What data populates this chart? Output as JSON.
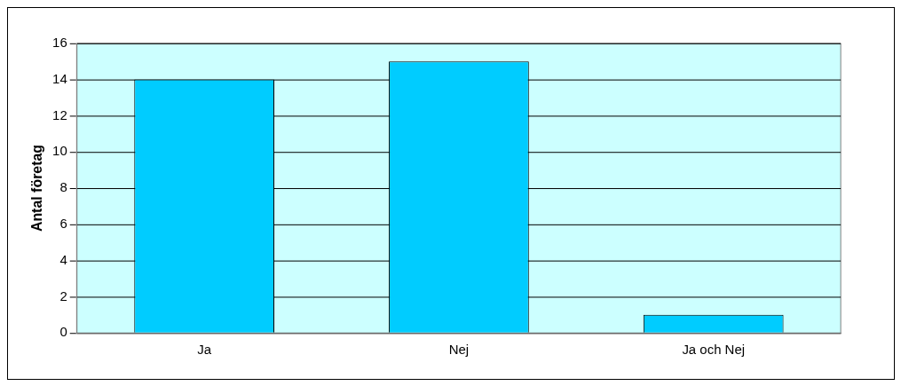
{
  "chart_data": {
    "type": "bar",
    "ylabel": "Antal företag",
    "categories": [
      "Ja",
      "Nej",
      "Ja och Nej"
    ],
    "values": [
      14,
      15,
      1
    ],
    "color": "#00ccff",
    "ylim": [
      0,
      16
    ],
    "yticks": [
      0,
      2,
      4,
      6,
      8,
      10,
      12,
      14,
      16
    ],
    "grid": "y",
    "legend": false
  }
}
